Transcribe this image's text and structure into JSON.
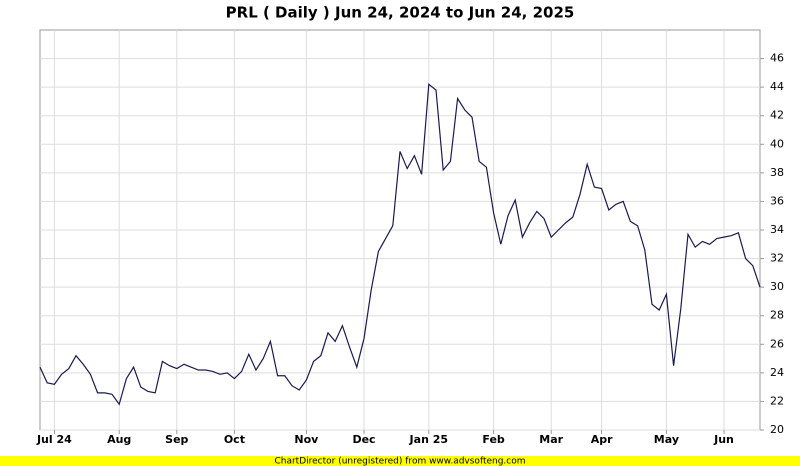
{
  "chart_data": {
    "type": "line",
    "title": "PRL ( Daily ) Jun 24, 2024 to Jun 24, 2025",
    "categories": [
      null,
      null,
      "Jul 24",
      null,
      null,
      null,
      null,
      null,
      null,
      null,
      null,
      "Aug",
      null,
      null,
      null,
      null,
      null,
      null,
      null,
      "Sep",
      null,
      null,
      null,
      null,
      null,
      null,
      null,
      "Oct",
      null,
      null,
      null,
      null,
      null,
      null,
      null,
      null,
      null,
      "Nov",
      null,
      null,
      null,
      null,
      null,
      null,
      null,
      "Dec",
      null,
      null,
      null,
      null,
      null,
      null,
      null,
      null,
      "Jan 25",
      null,
      null,
      null,
      null,
      null,
      null,
      null,
      null,
      "Feb",
      null,
      null,
      null,
      null,
      null,
      null,
      null,
      "Mar",
      null,
      null,
      null,
      null,
      null,
      null,
      "Apr",
      null,
      null,
      null,
      null,
      null,
      null,
      null,
      null,
      "May",
      null,
      null,
      null,
      null,
      null,
      null,
      null,
      "Jun",
      null,
      null,
      null,
      null,
      null
    ],
    "series": [
      {
        "name": "PRL",
        "color": "#1a1a4e",
        "values": [
          24.4,
          23.3,
          23.2,
          23.9,
          24.3,
          25.2,
          24.6,
          23.9,
          22.6,
          22.6,
          22.5,
          21.8,
          23.6,
          24.4,
          23.0,
          22.7,
          22.6,
          24.8,
          24.5,
          24.3,
          24.6,
          24.4,
          24.2,
          24.2,
          24.1,
          23.9,
          24.0,
          23.6,
          24.1,
          25.3,
          24.2,
          25.0,
          26.2,
          23.8,
          23.8,
          23.1,
          22.8,
          23.5,
          24.8,
          25.2,
          26.8,
          26.2,
          27.3,
          25.8,
          24.4,
          26.4,
          29.8,
          32.5,
          33.4,
          34.3,
          39.5,
          38.3,
          39.2,
          37.9,
          44.2,
          43.8,
          38.2,
          38.8,
          43.2,
          42.4,
          41.9,
          38.8,
          38.4,
          35.2,
          33.0,
          35.0,
          36.1,
          33.5,
          34.5,
          35.3,
          34.8,
          33.5,
          34.0,
          34.5,
          34.9,
          36.5,
          38.6,
          37.0,
          36.9,
          35.4,
          35.8,
          36.0,
          34.6,
          34.3,
          32.6,
          28.8,
          28.4,
          29.5,
          24.5,
          28.5,
          33.7,
          32.8,
          33.2,
          33.0,
          33.4,
          33.5,
          33.6,
          33.8,
          32.0,
          31.5,
          30.0
        ]
      }
    ],
    "ylim": [
      20,
      48
    ],
    "yticks": [
      20,
      22,
      24,
      26,
      28,
      30,
      32,
      34,
      36,
      38,
      40,
      42,
      44,
      46
    ],
    "grid": true
  },
  "footer": "ChartDirector (unregistered) from www.advsofteng.com"
}
